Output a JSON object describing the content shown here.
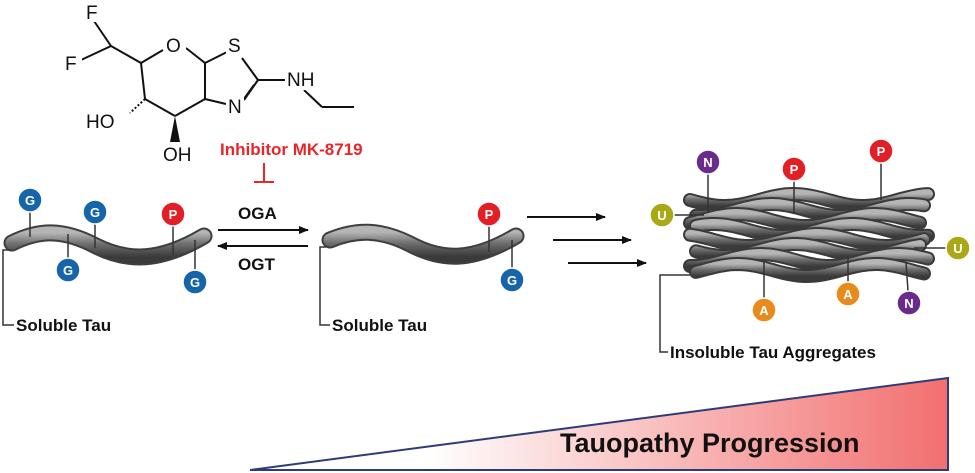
{
  "molecule": {
    "atoms": {
      "f_top": "F",
      "f_left": "F",
      "o_ring": "O",
      "s_atom": "S",
      "nh": "NH",
      "n_atom": "N",
      "ho": "HO",
      "oh": "OH"
    }
  },
  "inhibitor": {
    "label": "Inhibitor MK-8719",
    "color": "#e8262a"
  },
  "enzymes": {
    "forward": "OGA",
    "reverse": "OGT"
  },
  "labels": {
    "soluble_left": "Soluble Tau",
    "soluble_mid": "Soluble Tau",
    "aggregates": "Insoluble Tau Aggregates",
    "progression": "Tauopathy Progression"
  },
  "modifications": {
    "G": {
      "letter": "G",
      "color": "#1565a8"
    },
    "P": {
      "letter": "P",
      "color": "#e21e26"
    },
    "N": {
      "letter": "N",
      "color": "#6a2c8c"
    },
    "U": {
      "letter": "U",
      "color": "#a9a816"
    },
    "A": {
      "letter": "A",
      "color": "#e98a1d"
    }
  },
  "colors": {
    "tau": "#707070",
    "triangle_outline": "#2d3c78",
    "triangle_fill_end": "#f26f6f"
  }
}
